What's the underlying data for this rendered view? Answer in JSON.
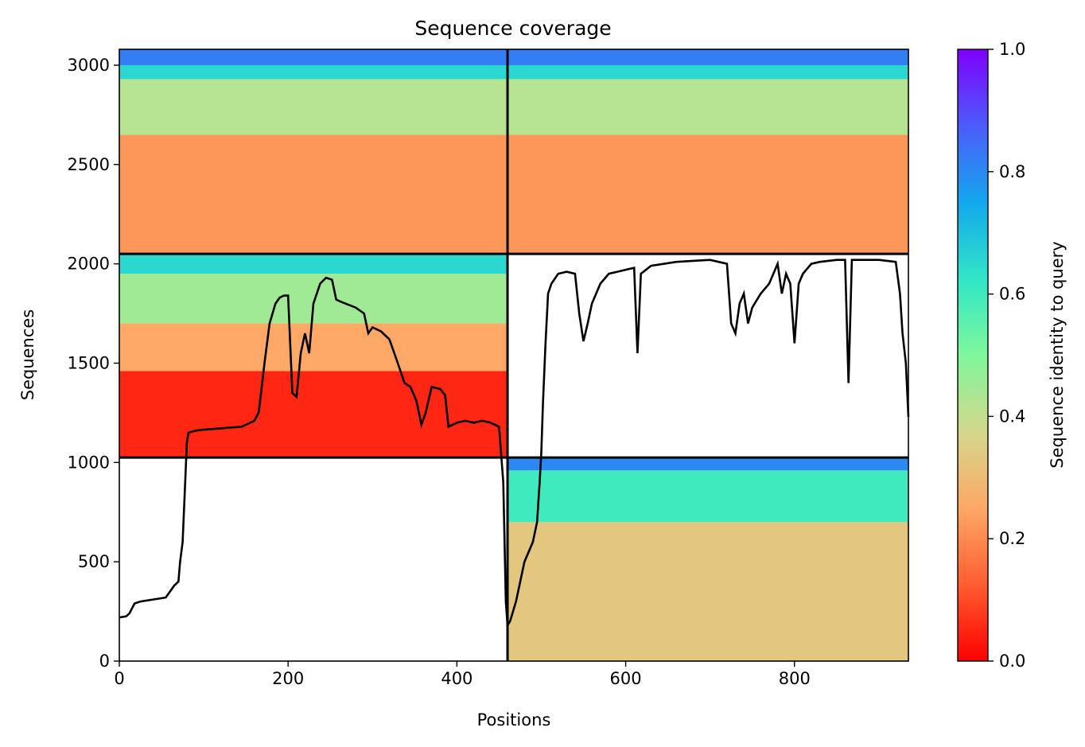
{
  "chart_data": {
    "type": "heatmap",
    "title": "Sequence coverage",
    "xlabel": "Positions",
    "ylabel": "Sequences",
    "colorbar_label": "Sequence identity to query",
    "colormap": "rainbow",
    "xlim": [
      0,
      935
    ],
    "ylim": [
      0,
      3080
    ],
    "x_ticks": [
      0,
      200,
      400,
      600,
      800
    ],
    "y_ticks": [
      0,
      500,
      1000,
      1500,
      2000,
      2500,
      3000
    ],
    "colorbar_range": [
      0,
      1
    ],
    "colorbar_ticks": [
      "0.0",
      "0.2",
      "0.4",
      "0.6",
      "0.8",
      "1.0"
    ],
    "chain_boundary_positions": [
      460
    ],
    "block_boundary_sequences": [
      1025,
      2050
    ],
    "blocks": [
      {
        "name": "block-chain-a-only",
        "x_range": [
          460,
          935
        ],
        "y_range": [
          0,
          1025
        ],
        "identity_bands": [
          {
            "y_from": 0,
            "y_to": 700,
            "identity": 0.33
          },
          {
            "y_from": 700,
            "y_to": 960,
            "identity": 0.6
          },
          {
            "y_from": 960,
            "y_to": 1025,
            "identity": 0.8
          }
        ]
      },
      {
        "name": "block-chain-b-only",
        "x_range": [
          0,
          460
        ],
        "y_range": [
          1025,
          2050
        ],
        "identity_bands": [
          {
            "y_from": 1025,
            "y_to": 1460,
            "identity": 0.05
          },
          {
            "y_from": 1460,
            "y_to": 1700,
            "identity": 0.25
          },
          {
            "y_from": 1700,
            "y_to": 1950,
            "identity": 0.45
          },
          {
            "y_from": 1950,
            "y_to": 2050,
            "identity": 0.65
          }
        ]
      },
      {
        "name": "block-paired",
        "x_range": [
          0,
          935
        ],
        "y_range": [
          2050,
          3080
        ],
        "identity_bands": [
          {
            "y_from": 2050,
            "y_to": 2650,
            "identity": 0.22
          },
          {
            "y_from": 2650,
            "y_to": 2930,
            "identity": 0.42
          },
          {
            "y_from": 2930,
            "y_to": 3000,
            "identity": 0.65
          },
          {
            "y_from": 3000,
            "y_to": 3080,
            "identity": 0.82
          }
        ]
      }
    ],
    "coverage_line": {
      "name": "coverage",
      "color": "#000000",
      "points": [
        [
          0,
          220
        ],
        [
          8,
          225
        ],
        [
          12,
          240
        ],
        [
          18,
          290
        ],
        [
          25,
          300
        ],
        [
          40,
          310
        ],
        [
          55,
          320
        ],
        [
          60,
          350
        ],
        [
          65,
          380
        ],
        [
          70,
          400
        ],
        [
          72,
          500
        ],
        [
          75,
          600
        ],
        [
          78,
          900
        ],
        [
          80,
          1100
        ],
        [
          82,
          1150
        ],
        [
          90,
          1160
        ],
        [
          100,
          1165
        ],
        [
          115,
          1170
        ],
        [
          130,
          1175
        ],
        [
          145,
          1180
        ],
        [
          160,
          1210
        ],
        [
          165,
          1250
        ],
        [
          168,
          1350
        ],
        [
          172,
          1500
        ],
        [
          178,
          1700
        ],
        [
          185,
          1800
        ],
        [
          190,
          1830
        ],
        [
          195,
          1840
        ],
        [
          200,
          1840
        ],
        [
          205,
          1350
        ],
        [
          210,
          1330
        ],
        [
          215,
          1550
        ],
        [
          220,
          1650
        ],
        [
          225,
          1550
        ],
        [
          230,
          1800
        ],
        [
          238,
          1900
        ],
        [
          245,
          1930
        ],
        [
          252,
          1920
        ],
        [
          257,
          1820
        ],
        [
          262,
          1810
        ],
        [
          268,
          1800
        ],
        [
          280,
          1780
        ],
        [
          290,
          1750
        ],
        [
          295,
          1650
        ],
        [
          300,
          1680
        ],
        [
          310,
          1660
        ],
        [
          320,
          1620
        ],
        [
          330,
          1500
        ],
        [
          338,
          1400
        ],
        [
          345,
          1380
        ],
        [
          352,
          1310
        ],
        [
          358,
          1190
        ],
        [
          363,
          1250
        ],
        [
          370,
          1380
        ],
        [
          380,
          1370
        ],
        [
          386,
          1340
        ],
        [
          390,
          1180
        ],
        [
          400,
          1200
        ],
        [
          410,
          1210
        ],
        [
          420,
          1200
        ],
        [
          430,
          1210
        ],
        [
          440,
          1200
        ],
        [
          445,
          1190
        ],
        [
          450,
          1180
        ],
        [
          455,
          900
        ],
        [
          458,
          300
        ],
        [
          460,
          180
        ],
        [
          463,
          200
        ],
        [
          470,
          300
        ],
        [
          480,
          500
        ],
        [
          490,
          600
        ],
        [
          495,
          700
        ],
        [
          498,
          900
        ],
        [
          500,
          1050
        ],
        [
          502,
          1300
        ],
        [
          505,
          1600
        ],
        [
          508,
          1850
        ],
        [
          512,
          1900
        ],
        [
          520,
          1950
        ],
        [
          530,
          1960
        ],
        [
          540,
          1950
        ],
        [
          545,
          1750
        ],
        [
          550,
          1610
        ],
        [
          555,
          1700
        ],
        [
          560,
          1800
        ],
        [
          570,
          1900
        ],
        [
          580,
          1950
        ],
        [
          590,
          1960
        ],
        [
          600,
          1970
        ],
        [
          610,
          1980
        ],
        [
          614,
          1550
        ],
        [
          618,
          1950
        ],
        [
          630,
          1990
        ],
        [
          660,
          2010
        ],
        [
          700,
          2020
        ],
        [
          720,
          2000
        ],
        [
          725,
          1700
        ],
        [
          730,
          1650
        ],
        [
          735,
          1800
        ],
        [
          740,
          1850
        ],
        [
          745,
          1700
        ],
        [
          750,
          1780
        ],
        [
          760,
          1850
        ],
        [
          770,
          1900
        ],
        [
          780,
          2000
        ],
        [
          785,
          1850
        ],
        [
          790,
          1950
        ],
        [
          795,
          1900
        ],
        [
          800,
          1600
        ],
        [
          805,
          1900
        ],
        [
          810,
          1950
        ],
        [
          820,
          2000
        ],
        [
          830,
          2010
        ],
        [
          850,
          2020
        ],
        [
          860,
          2020
        ],
        [
          864,
          1400
        ],
        [
          868,
          2020
        ],
        [
          880,
          2020
        ],
        [
          900,
          2020
        ],
        [
          920,
          2010
        ],
        [
          925,
          1850
        ],
        [
          928,
          1650
        ],
        [
          932,
          1500
        ],
        [
          935,
          1230
        ]
      ]
    }
  }
}
